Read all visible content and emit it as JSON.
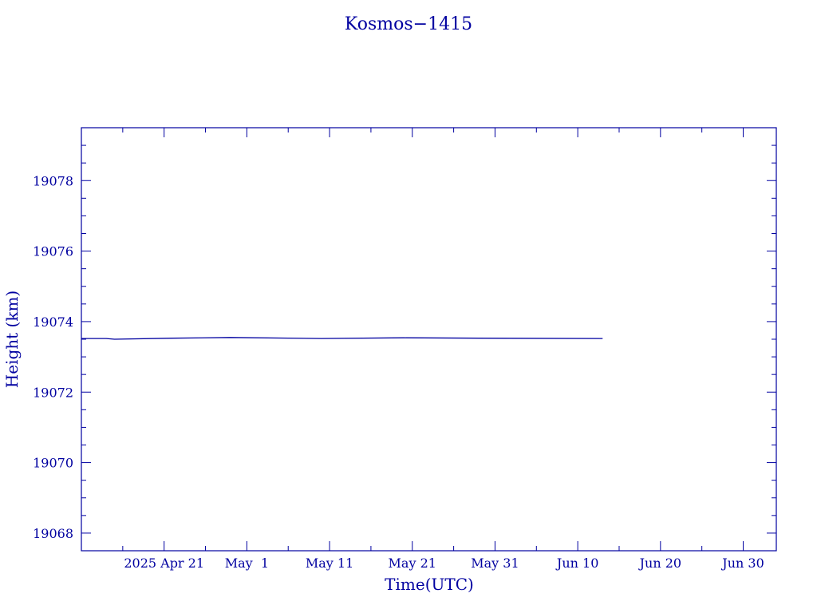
{
  "chart_data": {
    "type": "line",
    "title": "Kosmos−1415",
    "xlabel": "Time(UTC)",
    "ylabel": "Height (km)",
    "x_tick_labels": [
      "2025 Apr 21",
      "May  1",
      "May 11",
      "May 21",
      "May 31",
      "Jun 10",
      "Jun 20",
      "Jun 30"
    ],
    "y_tick_labels": [
      "19068",
      "19070",
      "19072",
      "19074",
      "19076",
      "19078"
    ],
    "ylim": [
      19067.5,
      19079.5
    ],
    "xlim_days_from_apr21": [
      -10,
      74
    ],
    "series": [
      {
        "x": [
          "2025-04-11",
          "2025-04-14",
          "2025-04-15",
          "2025-04-22",
          "2025-04-29",
          "2025-05-10",
          "2025-05-20",
          "2025-05-29",
          "2025-06-13"
        ],
        "values": [
          19073.52,
          19073.52,
          19073.5,
          19073.53,
          19073.55,
          19073.52,
          19073.54,
          19073.53,
          19073.52
        ]
      }
    ],
    "grid": false,
    "legend": "none"
  }
}
